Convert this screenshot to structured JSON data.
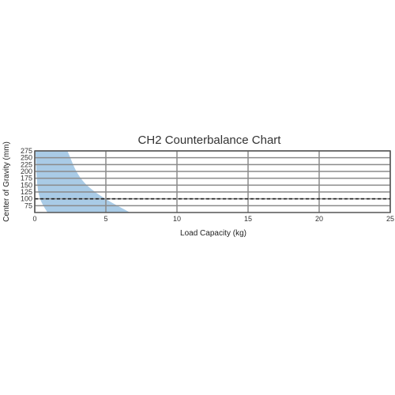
{
  "chart_data": {
    "type": "area",
    "title": "CH2 Counterbalance Chart",
    "xlabel": "Load Capacity (kg)",
    "ylabel": "Center of Gravity (mm)",
    "xlim": [
      0,
      25
    ],
    "ylim": [
      50,
      275
    ],
    "x_ticks": [
      "0",
      "5",
      "10",
      "15",
      "20",
      "25"
    ],
    "y_ticks": [
      "75",
      "100",
      "125",
      "150",
      "175",
      "200",
      "225",
      "250",
      "275"
    ],
    "grid": true,
    "region": {
      "description": "shaded allowable operating area",
      "left_edge": [
        [
          0.05,
          275
        ],
        [
          0.15,
          150
        ],
        [
          0.35,
          100
        ],
        [
          0.65,
          70
        ],
        [
          0.9,
          50
        ]
      ],
      "right_edge": [
        [
          2.3,
          275
        ],
        [
          3.1,
          175
        ],
        [
          4.5,
          112
        ],
        [
          6.7,
          50
        ]
      ]
    },
    "reference_line": {
      "y": 100,
      "style": "dashed"
    },
    "colors": {
      "region": "#a9cbe6",
      "grid": "#8a8a8a",
      "reference": "#222222",
      "frame": "#555555"
    }
  }
}
